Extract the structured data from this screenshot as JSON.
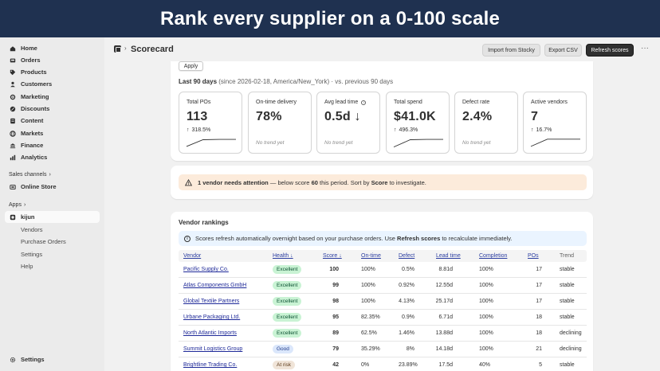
{
  "banner": {
    "title": "Rank every supplier on a 0-100 scale"
  },
  "sidebar": {
    "items": [
      {
        "label": "Home",
        "icon": "home-icon"
      },
      {
        "label": "Orders",
        "icon": "inbox-icon"
      },
      {
        "label": "Products",
        "icon": "tag-icon"
      },
      {
        "label": "Customers",
        "icon": "person-icon"
      },
      {
        "label": "Marketing",
        "icon": "target-icon"
      },
      {
        "label": "Discounts",
        "icon": "discount-icon"
      },
      {
        "label": "Content",
        "icon": "content-icon"
      },
      {
        "label": "Markets",
        "icon": "globe-icon"
      },
      {
        "label": "Finance",
        "icon": "bank-icon"
      },
      {
        "label": "Analytics",
        "icon": "chart-icon"
      }
    ],
    "sales_channels_label": "Sales channels",
    "online_store": "Online Store",
    "apps_label": "Apps",
    "app_name": "kijun",
    "app_subitems": [
      "Vendors",
      "Purchase Orders",
      "Settings",
      "Help"
    ],
    "settings": "Settings"
  },
  "topbar": {
    "sep": "›",
    "title": "Scorecard",
    "import_label": "Import from Stocky",
    "export_label": "Export CSV",
    "refresh_label": "Refresh scores",
    "more": "···"
  },
  "filter": {
    "apply_label": "Apply",
    "period_bold": "Last 90 days",
    "period_rest": " (since 2026-02-18, America/New_York) · vs. previous 90 days"
  },
  "metrics": [
    {
      "label": "Total POs",
      "value": "113",
      "delta": "318.5%",
      "arrow": "↑",
      "trend": [
        0.15,
        0.75,
        0.78,
        0.78
      ]
    },
    {
      "label": "On-time delivery",
      "value": "78%",
      "notrend": "No trend yet"
    },
    {
      "label": "Avg lead time",
      "value": "0.5d ↓",
      "notrend": "No trend yet",
      "info": "i"
    },
    {
      "label": "Total spend",
      "value": "$41.0K",
      "delta": "496.3%",
      "arrow": "↑",
      "trend": [
        0.1,
        0.75,
        0.78,
        0.78
      ]
    },
    {
      "label": "Defect rate",
      "value": "2.4%",
      "notrend": "No trend yet"
    },
    {
      "label": "Active vendors",
      "value": "7",
      "delta": "16.7%",
      "arrow": "↑",
      "trend": [
        0.15,
        0.8,
        0.8,
        0.8
      ]
    }
  ],
  "alert": {
    "bold": "1 vendor needs attention",
    "mid": " — below score ",
    "score": "60",
    "rest": " this period. Sort by ",
    "sort": "Score",
    "end": " to investigate."
  },
  "rankings": {
    "title": "Vendor rankings",
    "info_pre": "Scores refresh automatically overnight based on your purchase orders. Use ",
    "info_bold": "Refresh scores",
    "info_post": " to recalculate immediately.",
    "columns": [
      "Vendor",
      "Health ↓",
      "Score ↓",
      "On-time",
      "Defect",
      "Lead time",
      "Completion",
      "POs",
      "Trend"
    ],
    "rows": [
      {
        "vendor": "Pacific Supply Co.",
        "health": "Excellent",
        "score": "100",
        "ontime": "100%",
        "defect": "0.5%",
        "lead": "8.81d",
        "completion": "100%",
        "pos": "17",
        "trend": "stable"
      },
      {
        "vendor": "Atlas Components GmbH",
        "health": "Excellent",
        "score": "99",
        "ontime": "100%",
        "defect": "0.92%",
        "lead": "12.55d",
        "completion": "100%",
        "pos": "17",
        "trend": "stable"
      },
      {
        "vendor": "Global Textile Partners",
        "health": "Excellent",
        "score": "98",
        "ontime": "100%",
        "defect": "4.13%",
        "lead": "25.17d",
        "completion": "100%",
        "pos": "17",
        "trend": "stable"
      },
      {
        "vendor": "Urbane Packaging Ltd.",
        "health": "Excellent",
        "score": "95",
        "ontime": "82.35%",
        "defect": "0.9%",
        "lead": "6.71d",
        "completion": "100%",
        "pos": "18",
        "trend": "stable"
      },
      {
        "vendor": "North Atlantic Imports",
        "health": "Excellent",
        "score": "89",
        "ontime": "62.5%",
        "defect": "1.46%",
        "lead": "13.88d",
        "completion": "100%",
        "pos": "18",
        "trend": "declining"
      },
      {
        "vendor": "Summit Logistics Group",
        "health": "Good",
        "score": "79",
        "ontime": "35.29%",
        "defect": "8%",
        "lead": "14.18d",
        "completion": "100%",
        "pos": "21",
        "trend": "declining"
      },
      {
        "vendor": "Brightline Trading Co.",
        "health": "At risk",
        "score": "42",
        "ontime": "0%",
        "defect": "23.89%",
        "lead": "17.5d",
        "completion": "40%",
        "pos": "5",
        "trend": "stable"
      }
    ]
  },
  "colors": {
    "banner": "#1f3150",
    "excellent_bg": "#c9f3d4",
    "excellent_fg": "#0c5132",
    "good_bg": "#dbe7fb",
    "good_fg": "#1e3a8a",
    "risk_bg": "#f0e4d8",
    "risk_fg": "#5c3a1a",
    "link": "#1f2a99"
  }
}
